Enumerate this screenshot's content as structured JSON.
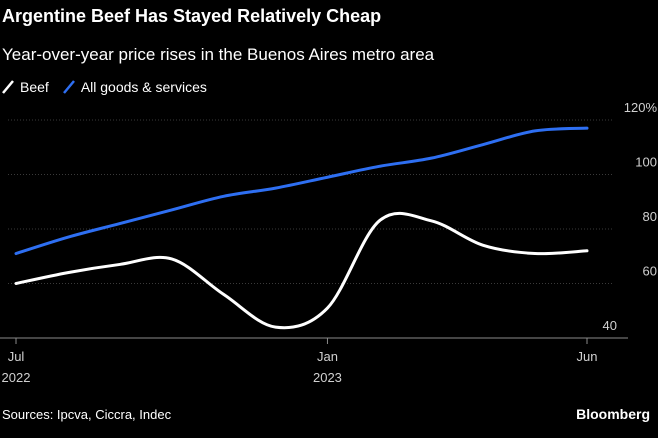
{
  "chart_data": {
    "type": "line",
    "title": "Argentine Beef Has Stayed Relatively Cheap",
    "subtitle": "Year-over-year price rises in the Buenos Aires metro area",
    "xlabel": "",
    "ylabel": "",
    "ylim": [
      37,
      122
    ],
    "y_ticks": [
      {
        "value": 120,
        "label": "120%"
      },
      {
        "value": 100,
        "label": "100"
      },
      {
        "value": 80,
        "label": "80"
      },
      {
        "value": 60,
        "label": "60"
      },
      {
        "value": 40,
        "label": "40"
      }
    ],
    "x_ticks": [
      {
        "x": 0,
        "label": "Jul",
        "sublabel": "2022"
      },
      {
        "x": 6,
        "label": "Jan",
        "sublabel": "2023"
      },
      {
        "x": 11,
        "label": "Jun",
        "sublabel": ""
      }
    ],
    "xlim": [
      -0.3,
      11.8
    ],
    "grid": true,
    "legend_position": "top-left",
    "x": [
      0,
      1,
      2,
      3,
      4,
      5,
      6,
      7,
      8,
      9,
      10,
      11
    ],
    "series": [
      {
        "name": "Beef",
        "color": "#ffffff",
        "values": [
          60,
          64,
          67,
          69,
          56,
          44,
          51,
          83,
          83,
          74,
          71,
          72
        ]
      },
      {
        "name": "All goods & services",
        "color": "#2e6ff2",
        "values": [
          71,
          77,
          82,
          87,
          92,
          95,
          99,
          103,
          106,
          111,
          116,
          117
        ]
      }
    ],
    "gridline_color": "#3a3a3a"
  },
  "footer": {
    "source": "Sources: Ipcva, Ciccra, Indec",
    "brand": "Bloomberg"
  }
}
